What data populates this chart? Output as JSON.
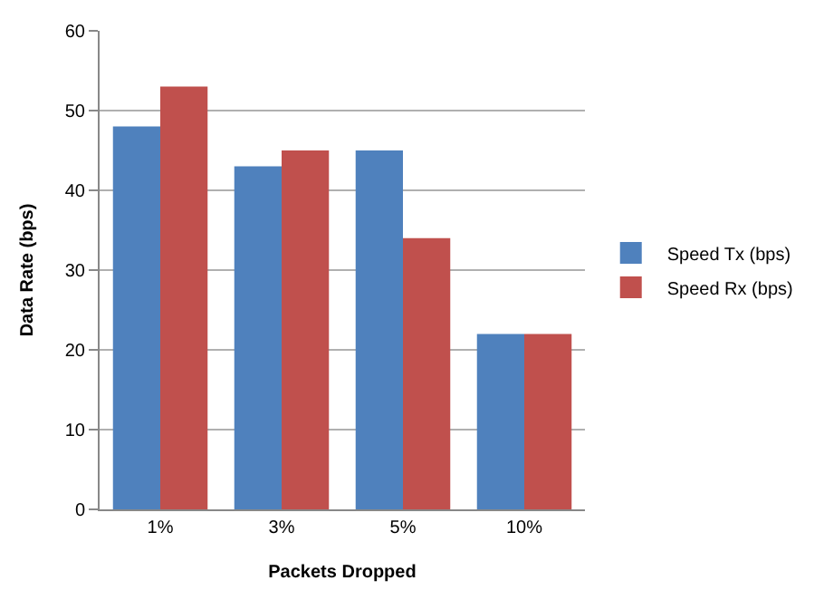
{
  "chart_data": {
    "type": "bar",
    "xlabel": "Packets Dropped",
    "ylabel": "Data Rate (bps)",
    "categories": [
      "1%",
      "3%",
      "5%",
      "10%"
    ],
    "series": [
      {
        "name": "Speed Tx (bps)",
        "color": "#4f81bd",
        "values": [
          48,
          43,
          45,
          22
        ]
      },
      {
        "name": "Speed Rx (bps)",
        "color": "#c0504d",
        "values": [
          53,
          45,
          34,
          22
        ]
      }
    ],
    "ylim": [
      0,
      60
    ],
    "yticks": [
      0,
      10,
      20,
      30,
      40,
      50,
      60
    ],
    "grid": "y",
    "legend": "right"
  }
}
